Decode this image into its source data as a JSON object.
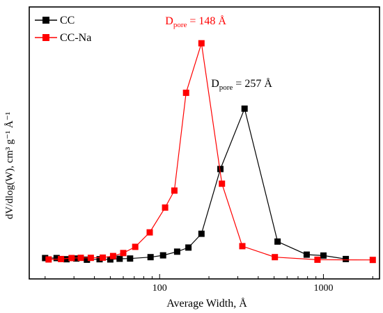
{
  "chart_data": {
    "type": "line",
    "title": "",
    "xlabel": "Average Width, Å",
    "ylabel": "dV/dlog(W), cm³ g⁻¹ Å⁻¹",
    "xscale": "log",
    "xlim": [
      16,
      2200
    ],
    "ylim": [
      0,
      1.0
    ],
    "x_ticks": [
      100,
      1000
    ],
    "x_tick_labels": [
      "100",
      "1000"
    ],
    "y_ticks_shown": false,
    "grid": false,
    "legend_position": "top-left",
    "series": [
      {
        "name": "CC",
        "color": "#000000",
        "marker": "square",
        "x": [
          20,
          23.5,
          27,
          31,
          36,
          43,
          50,
          57,
          66,
          88,
          105,
          128,
          150,
          180,
          235,
          330,
          525,
          790,
          1000,
          1370
        ],
        "y": [
          0.012,
          0.012,
          0.007,
          0.01,
          0.005,
          0.007,
          0.006,
          0.009,
          0.01,
          0.016,
          0.024,
          0.04,
          0.058,
          0.118,
          0.4,
          0.663,
          0.084,
          0.027,
          0.023,
          0.008
        ]
      },
      {
        "name": "CC-Na",
        "color": "#ff0000",
        "marker": "square",
        "x": [
          21,
          25,
          29,
          33,
          38,
          45,
          52,
          60,
          71,
          87,
          108,
          123,
          145,
          180,
          240,
          320,
          505,
          920,
          2000
        ],
        "y": [
          0.006,
          0.008,
          0.012,
          0.013,
          0.013,
          0.014,
          0.021,
          0.034,
          0.061,
          0.124,
          0.232,
          0.306,
          0.732,
          0.948,
          0.336,
          0.064,
          0.016,
          0.005,
          0.004
        ]
      }
    ],
    "annotations": [
      {
        "main": "D",
        "sub": "pore",
        "rest": " = 148 Å",
        "color": "#ff0000",
        "x": 180,
        "y": 1.0
      },
      {
        "main": "D",
        "sub": "pore",
        "rest": " = 257 Å",
        "color": "#000000",
        "x": 330,
        "y": 0.73
      }
    ]
  }
}
